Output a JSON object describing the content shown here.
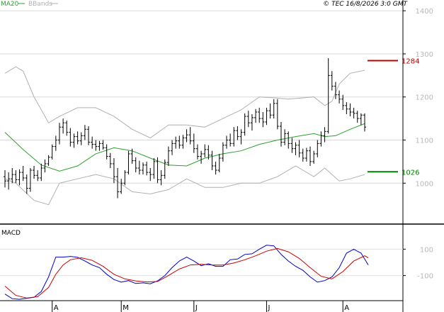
{
  "header": {
    "legend": [
      {
        "label": "MA20",
        "color": "#2ca02c"
      },
      {
        "label": "BBands",
        "color": "#b0b0b0"
      }
    ],
    "copyright": "© TEC 16/8/2026 3:0 GMT"
  },
  "macd_panel": {
    "label": "MACD"
  },
  "chart_data": [
    {
      "type": "ohlc",
      "panel": "price",
      "y_ticks": [
        1000,
        1100,
        1200,
        1300,
        1400
      ],
      "y_tick_labels": [
        "1000",
        "1100",
        "1200",
        "1300",
        "1400"
      ],
      "ylim": [
        905,
        1425
      ],
      "grid": true,
      "x_month_labels": [
        {
          "label": "A",
          "index": 13
        },
        {
          "label": "M",
          "index": 32
        },
        {
          "label": "J",
          "index": 52
        },
        {
          "label": "J",
          "index": 72
        },
        {
          "label": "A",
          "index": 93
        }
      ],
      "levels": [
        {
          "label": "1284",
          "value": 1284.4,
          "color": "#c00000"
        },
        {
          "label": "1026",
          "value": 1026.3,
          "color": "#008000"
        }
      ],
      "bars": [
        [
          1015,
          1030,
          990,
          1005
        ],
        [
          1005,
          1025,
          985,
          1010
        ],
        [
          1010,
          1035,
          1000,
          1020
        ],
        [
          1020,
          1030,
          1000,
          1008
        ],
        [
          1008,
          1032,
          995,
          1025
        ],
        [
          1025,
          1040,
          1005,
          1012
        ],
        [
          1012,
          1020,
          975,
          988
        ],
        [
          988,
          1035,
          980,
          1030
        ],
        [
          1030,
          1040,
          1010,
          1018
        ],
        [
          1018,
          1030,
          1005,
          1012
        ],
        [
          1012,
          1045,
          1005,
          1035
        ],
        [
          1035,
          1055,
          1025,
          1045
        ],
        [
          1045,
          1065,
          1040,
          1060
        ],
        [
          1060,
          1090,
          1055,
          1085
        ],
        [
          1085,
          1110,
          1075,
          1100
        ],
        [
          1100,
          1140,
          1090,
          1130
        ],
        [
          1130,
          1150,
          1115,
          1140
        ],
        [
          1140,
          1145,
          1110,
          1118
        ],
        [
          1118,
          1128,
          1085,
          1095
        ],
        [
          1095,
          1115,
          1082,
          1108
        ],
        [
          1108,
          1120,
          1090,
          1098
        ],
        [
          1098,
          1118,
          1088,
          1110
        ],
        [
          1110,
          1135,
          1100,
          1125
        ],
        [
          1125,
          1132,
          1088,
          1095
        ],
        [
          1095,
          1108,
          1080,
          1090
        ],
        [
          1090,
          1100,
          1075,
          1085
        ],
        [
          1085,
          1098,
          1075,
          1092
        ],
        [
          1092,
          1100,
          1078,
          1082
        ],
        [
          1082,
          1090,
          1055,
          1062
        ],
        [
          1062,
          1070,
          1035,
          1045
        ],
        [
          1045,
          1058,
          1000,
          1015
        ],
        [
          1015,
          1035,
          965,
          980
        ],
        [
          980,
          1010,
          975,
          1000
        ],
        [
          1000,
          1030,
          995,
          1025
        ],
        [
          1025,
          1075,
          1020,
          1068
        ],
        [
          1068,
          1080,
          1045,
          1052
        ],
        [
          1052,
          1060,
          1025,
          1035
        ],
        [
          1035,
          1052,
          1020,
          1030
        ],
        [
          1030,
          1048,
          1020,
          1042
        ],
        [
          1042,
          1050,
          1018,
          1025
        ],
        [
          1025,
          1035,
          1005,
          1020
        ],
        [
          1020,
          1058,
          1010,
          1050
        ],
        [
          1050,
          1060,
          1000,
          1008
        ],
        [
          1008,
          1030,
          995,
          1018
        ],
        [
          1018,
          1055,
          1010,
          1048
        ],
        [
          1048,
          1085,
          1040,
          1075
        ],
        [
          1075,
          1100,
          1065,
          1092
        ],
        [
          1092,
          1108,
          1080,
          1098
        ],
        [
          1098,
          1110,
          1080,
          1088
        ],
        [
          1088,
          1112,
          1080,
          1105
        ],
        [
          1105,
          1125,
          1095,
          1112
        ],
        [
          1112,
          1130,
          1090,
          1098
        ],
        [
          1098,
          1115,
          1070,
          1080
        ],
        [
          1080,
          1090,
          1055,
          1062
        ],
        [
          1062,
          1075,
          1045,
          1068
        ],
        [
          1068,
          1090,
          1060,
          1078
        ],
        [
          1078,
          1088,
          1055,
          1065
        ],
        [
          1065,
          1075,
          1030,
          1040
        ],
        [
          1040,
          1050,
          1020,
          1030
        ],
        [
          1030,
          1068,
          1025,
          1058
        ],
        [
          1058,
          1095,
          1050,
          1088
        ],
        [
          1088,
          1110,
          1080,
          1100
        ],
        [
          1100,
          1115,
          1085,
          1092
        ],
        [
          1092,
          1130,
          1085,
          1122
        ],
        [
          1122,
          1132,
          1100,
          1108
        ],
        [
          1108,
          1125,
          1090,
          1118
        ],
        [
          1118,
          1162,
          1110,
          1155
        ],
        [
          1155,
          1168,
          1130,
          1140
        ],
        [
          1140,
          1160,
          1122,
          1152
        ],
        [
          1152,
          1172,
          1140,
          1165
        ],
        [
          1165,
          1175,
          1140,
          1150
        ],
        [
          1150,
          1165,
          1130,
          1142
        ],
        [
          1142,
          1175,
          1135,
          1168
        ],
        [
          1168,
          1185,
          1150,
          1158
        ],
        [
          1158,
          1195,
          1150,
          1185
        ],
        [
          1185,
          1195,
          1125,
          1132
        ],
        [
          1132,
          1142,
          1085,
          1095
        ],
        [
          1095,
          1125,
          1088,
          1115
        ],
        [
          1115,
          1120,
          1080,
          1092
        ],
        [
          1092,
          1105,
          1070,
          1080
        ],
        [
          1080,
          1095,
          1065,
          1088
        ],
        [
          1088,
          1100,
          1060,
          1070
        ],
        [
          1070,
          1080,
          1050,
          1058
        ],
        [
          1058,
          1082,
          1050,
          1075
        ],
        [
          1075,
          1085,
          1040,
          1050
        ],
        [
          1050,
          1075,
          1045,
          1068
        ],
        [
          1068,
          1100,
          1060,
          1092
        ],
        [
          1092,
          1120,
          1085,
          1110
        ],
        [
          1110,
          1130,
          1095,
          1120
        ],
        [
          1120,
          1290,
          1115,
          1250
        ],
        [
          1250,
          1260,
          1215,
          1225
        ],
        [
          1225,
          1235,
          1195,
          1205
        ],
        [
          1205,
          1215,
          1185,
          1195
        ],
        [
          1195,
          1205,
          1170,
          1180
        ],
        [
          1180,
          1188,
          1160,
          1172
        ],
        [
          1172,
          1185,
          1155,
          1165
        ],
        [
          1165,
          1175,
          1150,
          1162
        ],
        [
          1162,
          1168,
          1140,
          1150
        ],
        [
          1150,
          1162,
          1135,
          1158
        ],
        [
          1158,
          1162,
          1120,
          1130
        ]
      ],
      "ma20": [
        [
          0,
          1118
        ],
        [
          5,
          1078
        ],
        [
          10,
          1042
        ],
        [
          15,
          1028
        ],
        [
          20,
          1040
        ],
        [
          25,
          1068
        ],
        [
          30,
          1082
        ],
        [
          35,
          1075
        ],
        [
          40,
          1058
        ],
        [
          45,
          1042
        ],
        [
          50,
          1040
        ],
        [
          55,
          1058
        ],
        [
          60,
          1068
        ],
        [
          65,
          1075
        ],
        [
          70,
          1090
        ],
        [
          75,
          1100
        ],
        [
          80,
          1108
        ],
        [
          85,
          1115
        ],
        [
          88,
          1108
        ],
        [
          91,
          1110
        ],
        [
          95,
          1125
        ],
        [
          99,
          1138
        ]
      ],
      "bb_upper": [
        [
          0,
          1255
        ],
        [
          3,
          1270
        ],
        [
          5,
          1260
        ],
        [
          8,
          1200
        ],
        [
          12,
          1140
        ],
        [
          15,
          1155
        ],
        [
          20,
          1175
        ],
        [
          25,
          1175
        ],
        [
          30,
          1155
        ],
        [
          35,
          1125
        ],
        [
          40,
          1105
        ],
        [
          45,
          1135
        ],
        [
          50,
          1135
        ],
        [
          55,
          1130
        ],
        [
          60,
          1150
        ],
        [
          65,
          1170
        ],
        [
          70,
          1200
        ],
        [
          74,
          1198
        ],
        [
          78,
          1195
        ],
        [
          85,
          1200
        ],
        [
          88,
          1180
        ],
        [
          90,
          1190
        ],
        [
          92,
          1230
        ],
        [
          95,
          1255
        ],
        [
          99,
          1262
        ]
      ],
      "bb_lower": [
        [
          0,
          1010
        ],
        [
          3,
          1000
        ],
        [
          8,
          960
        ],
        [
          12,
          950
        ],
        [
          15,
          1000
        ],
        [
          20,
          1010
        ],
        [
          25,
          1020
        ],
        [
          30,
          1010
        ],
        [
          35,
          980
        ],
        [
          40,
          975
        ],
        [
          45,
          985
        ],
        [
          50,
          1010
        ],
        [
          55,
          990
        ],
        [
          60,
          990
        ],
        [
          65,
          1000
        ],
        [
          70,
          1000
        ],
        [
          75,
          1015
        ],
        [
          80,
          1040
        ],
        [
          85,
          1015
        ],
        [
          88,
          1035
        ],
        [
          92,
          1005
        ],
        [
          95,
          1010
        ],
        [
          99,
          1020
        ]
      ]
    },
    {
      "type": "line",
      "panel": "macd",
      "y_ticks": [
        100,
        -100
      ],
      "y_tick_labels": [
        "100",
        "-100"
      ],
      "ylim": [
        -290,
        290
      ],
      "series": [
        {
          "color": "#0000cc",
          "points": [
            [
              0,
              -240
            ],
            [
              2,
              -275
            ],
            [
              4,
              -280
            ],
            [
              6,
              -272
            ],
            [
              8,
              -265
            ],
            [
              10,
              -220
            ],
            [
              12,
              -110
            ],
            [
              14,
              40
            ],
            [
              16,
              40
            ],
            [
              18,
              45
            ],
            [
              20,
              38
            ],
            [
              22,
              10
            ],
            [
              24,
              -20
            ],
            [
              26,
              -40
            ],
            [
              28,
              -90
            ],
            [
              30,
              -130
            ],
            [
              32,
              -150
            ],
            [
              34,
              -138
            ],
            [
              36,
              -160
            ],
            [
              38,
              -155
            ],
            [
              40,
              -162
            ],
            [
              42,
              -140
            ],
            [
              44,
              -100
            ],
            [
              46,
              -40
            ],
            [
              48,
              10
            ],
            [
              50,
              40
            ],
            [
              52,
              10
            ],
            [
              54,
              -25
            ],
            [
              56,
              -10
            ],
            [
              58,
              -30
            ],
            [
              60,
              -30
            ],
            [
              62,
              20
            ],
            [
              64,
              25
            ],
            [
              66,
              60
            ],
            [
              68,
              65
            ],
            [
              70,
              100
            ],
            [
              72,
              130
            ],
            [
              74,
              125
            ],
            [
              76,
              60
            ],
            [
              78,
              10
            ],
            [
              80,
              -30
            ],
            [
              82,
              -60
            ],
            [
              84,
              -110
            ],
            [
              86,
              -150
            ],
            [
              88,
              -138
            ],
            [
              90,
              -110
            ],
            [
              92,
              -40
            ],
            [
              94,
              70
            ],
            [
              96,
              100
            ],
            [
              98,
              70
            ],
            [
              100,
              -20
            ]
          ]
        },
        {
          "color": "#cc0000",
          "points": [
            [
              0,
              -180
            ],
            [
              3,
              -250
            ],
            [
              6,
              -270
            ],
            [
              9,
              -260
            ],
            [
              12,
              -190
            ],
            [
              14,
              -90
            ],
            [
              16,
              -20
            ],
            [
              18,
              20
            ],
            [
              21,
              35
            ],
            [
              24,
              15
            ],
            [
              27,
              -30
            ],
            [
              30,
              -90
            ],
            [
              33,
              -125
            ],
            [
              36,
              -140
            ],
            [
              39,
              -148
            ],
            [
              42,
              -145
            ],
            [
              45,
              -100
            ],
            [
              48,
              -50
            ],
            [
              51,
              -20
            ],
            [
              54,
              -15
            ],
            [
              57,
              -20
            ],
            [
              60,
              -20
            ],
            [
              63,
              -5
            ],
            [
              66,
              20
            ],
            [
              69,
              50
            ],
            [
              72,
              85
            ],
            [
              75,
              105
            ],
            [
              78,
              80
            ],
            [
              81,
              30
            ],
            [
              84,
              -40
            ],
            [
              87,
              -105
            ],
            [
              90,
              -125
            ],
            [
              93,
              -70
            ],
            [
              96,
              10
            ],
            [
              99,
              50
            ],
            [
              100,
              35
            ]
          ]
        }
      ]
    }
  ]
}
